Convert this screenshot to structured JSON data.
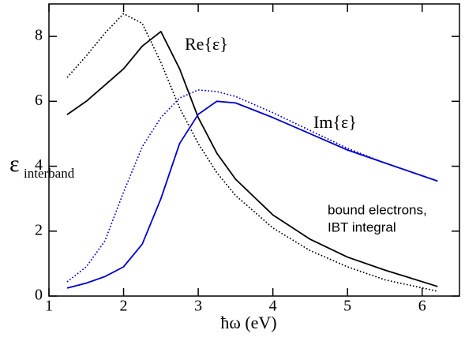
{
  "chart_data": {
    "type": "line",
    "x_label": "ħω (eV)",
    "y_label": "ε",
    "y_label_subscript": "interband",
    "annotations": [
      "Re{ε}",
      "Im{ε}",
      "bound electrons,",
      "IBT integral"
    ],
    "x": [
      1.25,
      1.5,
      1.75,
      2.0,
      2.25,
      2.5,
      2.75,
      3.0,
      3.25,
      3.5,
      4.0,
      4.5,
      5.0,
      5.5,
      6.2
    ],
    "series": [
      {
        "color": "#000000",
        "style": "solid",
        "values": [
          5.6,
          6.0,
          6.5,
          7.0,
          7.7,
          8.15,
          7.0,
          5.5,
          4.4,
          3.6,
          2.5,
          1.75,
          1.2,
          0.8,
          0.3
        ]
      },
      {
        "color": "#000000",
        "style": "dotted",
        "values": [
          6.75,
          7.4,
          8.1,
          8.7,
          8.4,
          7.2,
          5.8,
          4.7,
          3.8,
          3.1,
          2.1,
          1.4,
          0.9,
          0.5,
          0.15
        ]
      },
      {
        "color": "#0000cc",
        "style": "solid",
        "values": [
          0.25,
          0.4,
          0.6,
          0.9,
          1.6,
          3.0,
          4.7,
          5.6,
          6.0,
          5.95,
          5.5,
          5.0,
          4.5,
          4.1,
          3.55
        ]
      },
      {
        "color": "#0000cc",
        "style": "dotted",
        "values": [
          0.45,
          0.9,
          1.7,
          3.2,
          4.6,
          5.5,
          6.1,
          6.35,
          6.3,
          6.15,
          5.65,
          5.1,
          4.55,
          4.1,
          3.55
        ]
      }
    ],
    "xlim": [
      1,
      6.5
    ],
    "xticks": [
      1,
      2,
      3,
      4,
      5,
      6
    ],
    "ylim": [
      0,
      9
    ],
    "yticks": [
      0,
      2,
      4,
      6,
      8
    ]
  }
}
